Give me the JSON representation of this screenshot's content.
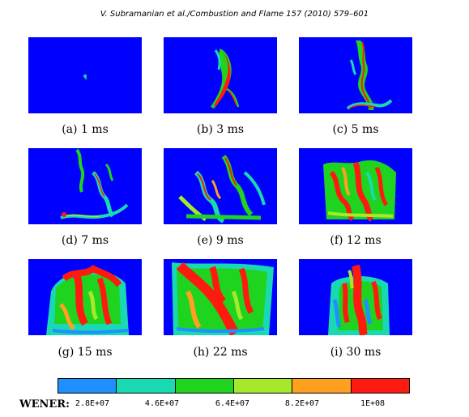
{
  "header": "V. Subramanian et al./Combustion and Flame 157 (2010) 579–601",
  "colors": {
    "background": "#0000ff",
    "levels": [
      "#1e90ff",
      "#19d9b2",
      "#1ed41e",
      "#a8e82a",
      "#ffa020",
      "#ff1a10"
    ]
  },
  "panels": [
    {
      "label": "(a) 1 ms"
    },
    {
      "label": "(b) 3 ms"
    },
    {
      "label": "(c) 5 ms"
    },
    {
      "label": "(d) 7 ms"
    },
    {
      "label": "(e) 9 ms"
    },
    {
      "label": "(f) 12 ms"
    },
    {
      "label": "(g) 15 ms"
    },
    {
      "label": "(h) 22 ms"
    },
    {
      "label": "(i) 30 ms"
    }
  ],
  "colorbar": {
    "title": "WENER:",
    "ticks": [
      "2.8E+07",
      "4.6E+07",
      "6.4E+07",
      "8.2E+07",
      "1E+08"
    ],
    "segment_colors": [
      "#1e90ff",
      "#19d9b2",
      "#1ed41e",
      "#a8e82a",
      "#ffa020",
      "#ff1a10"
    ]
  }
}
